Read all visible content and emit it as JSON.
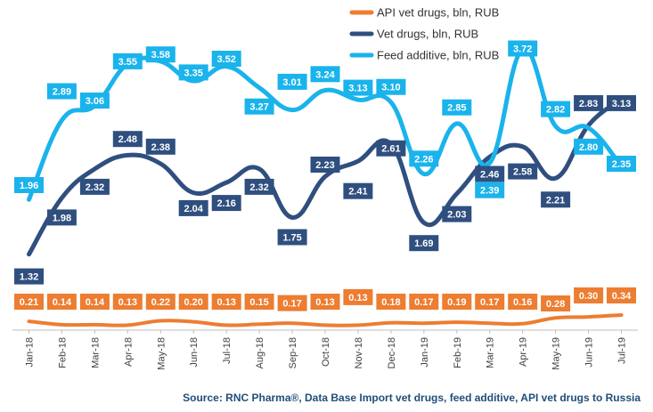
{
  "chart_data": {
    "type": "line",
    "categories": [
      "Jan-18",
      "Feb-18",
      "Mar-18",
      "Apr-18",
      "May-18",
      "Jun-18",
      "Jul-18",
      "Aug-18",
      "Sep-18",
      "Oct-18",
      "Nov-18",
      "Dec-18",
      "Jan-19",
      "Feb-19",
      "Mar-19",
      "Apr-19",
      "May-19",
      "Jun-19",
      "Jul-19"
    ],
    "series": [
      {
        "name": "API vet drugs, bln, RUB",
        "color": "#ED7D31",
        "values": [
          0.21,
          0.14,
          0.14,
          0.13,
          0.22,
          0.2,
          0.13,
          0.15,
          0.17,
          0.13,
          0.13,
          0.18,
          0.17,
          0.19,
          0.17,
          0.16,
          0.28,
          0.3,
          0.34
        ]
      },
      {
        "name": "Vet drugs, bln, RUB",
        "color": "#2F4F7F",
        "values": [
          1.32,
          1.98,
          2.32,
          2.48,
          2.38,
          2.04,
          2.16,
          2.32,
          1.75,
          2.23,
          2.41,
          2.61,
          1.69,
          2.03,
          2.46,
          2.58,
          2.21,
          2.83,
          3.13
        ]
      },
      {
        "name": "Feed additive, bln, RUB",
        "color": "#1AB3EC",
        "values": [
          1.96,
          2.89,
          3.06,
          3.55,
          3.58,
          3.35,
          3.52,
          3.27,
          3.01,
          3.24,
          3.13,
          3.1,
          2.26,
          2.85,
          2.39,
          3.72,
          2.82,
          2.8,
          2.35
        ]
      }
    ],
    "label_positions": {
      "API vet drugs, bln, RUB": [
        28.6,
        28.6,
        28.6,
        28.6,
        28.6,
        28.6,
        28.6,
        28.6,
        30.2,
        28.6,
        23.5,
        28.6,
        28.6,
        28.6,
        28.6,
        28.6,
        30.6,
        21.6,
        21.6
      ],
      "Vet drugs, bln, RUB": [
        1.06,
        1.75,
        2.11,
        2.67,
        2.58,
        1.86,
        1.92,
        2.11,
        1.52,
        2.37,
        2.06,
        2.56,
        1.45,
        1.79,
        2.26,
        2.29,
        1.96,
        3.09,
        3.09
      ],
      "Feed additive, bln, RUB": [
        2.13,
        3.23,
        3.12,
        3.58,
        3.66,
        3.45,
        3.61,
        3.05,
        3.34,
        3.43,
        3.27,
        3.28,
        2.44,
        3.04,
        2.07,
        3.73,
        3.02,
        2.58,
        2.38
      ]
    },
    "legend": "top-center",
    "grid": false,
    "source": "Source: RNC Pharma®, Data Base Import vet drugs, feed additive, API vet drugs to Russia"
  }
}
